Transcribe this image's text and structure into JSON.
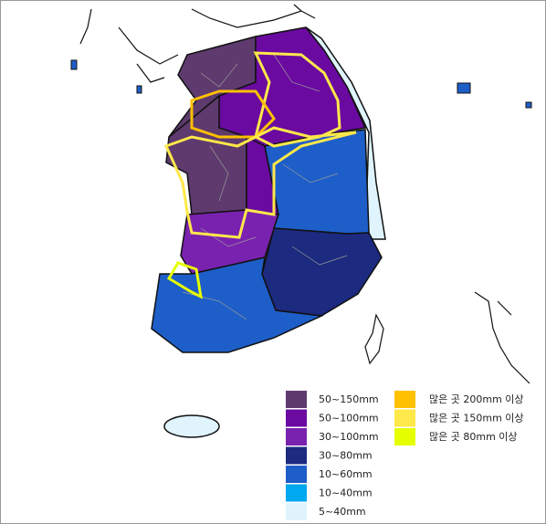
{
  "legend": {
    "rainfall": [
      {
        "label": "50~150mm",
        "color": "#5e3a6e"
      },
      {
        "label": "50~100mm",
        "color": "#6a0aa0"
      },
      {
        "label": "30~100mm",
        "color": "#7a22b0"
      },
      {
        "label": "30~80mm",
        "color": "#1c2a80"
      },
      {
        "label": "10~60mm",
        "color": "#1e5ec8"
      },
      {
        "label": "10~40mm",
        "color": "#00a8f0"
      },
      {
        "label": "5~40mm",
        "color": "#dff4fc"
      }
    ],
    "warnings": [
      {
        "label": "많은 곳 200mm 이상",
        "color": "#ffc000"
      },
      {
        "label": "많은 곳 150mm 이상",
        "color": "#ffe84a"
      },
      {
        "label": "많은 곳 80mm 이상",
        "color": "#e6ff00"
      }
    ]
  }
}
